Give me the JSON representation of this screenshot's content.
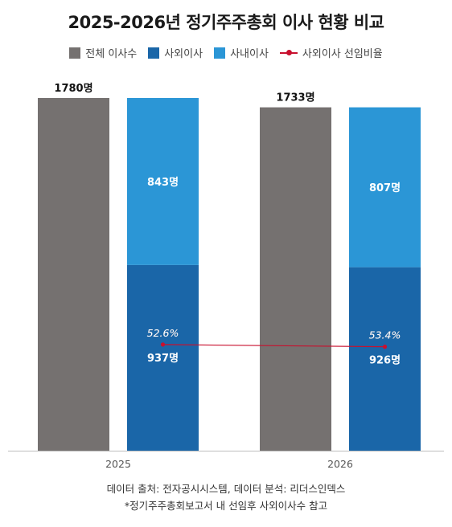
{
  "chart_data": {
    "type": "bar",
    "title": "2025-2026년 정기주주총회 이사 현황 비교",
    "categories": [
      "2025",
      "2026"
    ],
    "series": [
      {
        "name": "전체 이사수",
        "values": [
          1780,
          1733
        ],
        "labels": [
          "1780명",
          "1733명"
        ],
        "color": "#757170"
      },
      {
        "name": "사외이사",
        "values": [
          937,
          926
        ],
        "labels": [
          "937명",
          "926명"
        ],
        "color": "#1a66a8"
      },
      {
        "name": "사내이사",
        "values": [
          843,
          807
        ],
        "labels": [
          "843명",
          "807명"
        ],
        "color": "#2b96d6"
      },
      {
        "name": "사외이사 선임비율",
        "values": [
          52.6,
          53.4
        ],
        "labels": [
          "52.6%",
          "53.4%"
        ],
        "color": "#c8102e",
        "type": "line"
      }
    ],
    "ylim": [
      0,
      1780
    ],
    "grid": false,
    "legend_position": "top"
  },
  "footer": {
    "source": "데이터 출처: 전자공시시스템, 데이터 분석: 리더스인덱스",
    "note": "*정기주주총회보고서 내 선임후 사외이사수 참고"
  }
}
